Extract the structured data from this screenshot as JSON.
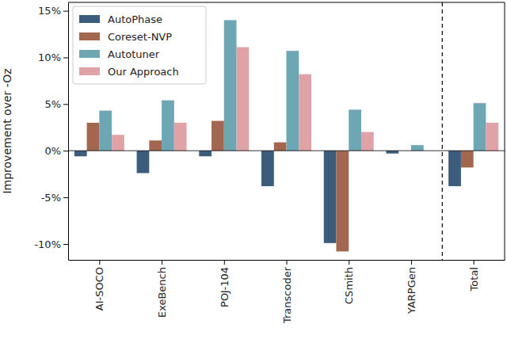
{
  "chart_data": {
    "type": "bar",
    "y_label": "Improvement over -Oz",
    "categories": [
      "AI-SOCO",
      "ExeBench",
      "POJ-104",
      "Transcoder",
      "CSmith",
      "YARPGen",
      "Total"
    ],
    "series": [
      {
        "name": "AutoPhase",
        "color": "#3b5c7a",
        "values": [
          -0.6,
          -2.4,
          -0.6,
          -3.8,
          -9.9,
          -0.3,
          -3.8
        ]
      },
      {
        "name": "Coreset-NVP",
        "color": "#a3674f",
        "values": [
          3.0,
          1.1,
          3.2,
          0.9,
          -10.8,
          0,
          -1.8
        ]
      },
      {
        "name": "Autotuner",
        "color": "#6ca7b3",
        "values": [
          4.3,
          5.4,
          14.0,
          10.7,
          4.4,
          0.6,
          5.1
        ]
      },
      {
        "name": "Our Approach",
        "color": "#dea2a7",
        "values": [
          1.7,
          3.0,
          11.1,
          8.2,
          2.0,
          0,
          3.0
        ]
      }
    ],
    "ylim": [
      -11.7,
      15.9
    ],
    "yticks": [
      {
        "value": -10,
        "label": "-10%"
      },
      {
        "value": -5,
        "label": "-5%"
      },
      {
        "value": 0,
        "label": "0%"
      },
      {
        "value": 5,
        "label": "5%"
      },
      {
        "value": 10,
        "label": "10%"
      },
      {
        "value": 15,
        "label": "15%"
      }
    ],
    "legend": "upper left",
    "grid": false
  }
}
